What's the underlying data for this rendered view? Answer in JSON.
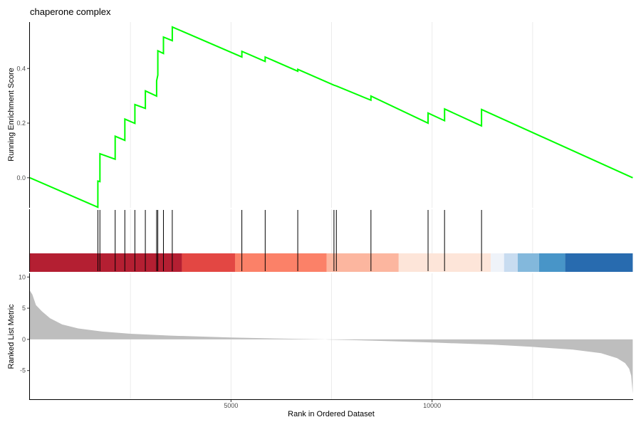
{
  "chart_data": {
    "type": "line",
    "title": "chaperone complex",
    "xlabel": "Rank in Ordered Dataset",
    "x_range": [
      0,
      15000
    ],
    "x_ticks": [
      5000,
      10000
    ],
    "grid": "vertical",
    "panels": {
      "enrichment": {
        "ylabel": "Running Enrichment Score",
        "ylim": [
          -0.11,
          0.57
        ],
        "y_ticks": [
          0.0,
          0.2,
          0.4
        ],
        "line_color": "#00ff00",
        "series": [
          {
            "x": [
              0,
              1690,
              1690,
              1740,
              1740,
              2120,
              2120,
              2360,
              2360,
              2610,
              2610,
              2870,
              2870,
              3150,
              3150,
              3180,
              3180,
              3320,
              3320,
              3540,
              3540,
              5270,
              5270,
              5850,
              5850,
              6660,
              6660,
              7560,
              7560,
              7620,
              7620,
              8480,
              8480,
              9900,
              9900,
              10310,
              10310,
              11230,
              11230,
              14990
            ],
            "y": [
              0.0,
              -0.108,
              -0.012,
              -0.014,
              0.088,
              0.068,
              0.152,
              0.137,
              0.215,
              0.199,
              0.268,
              0.254,
              0.318,
              0.299,
              0.355,
              0.376,
              0.465,
              0.455,
              0.515,
              0.502,
              0.552,
              0.442,
              0.463,
              0.426,
              0.442,
              0.39,
              0.397,
              0.339,
              0.339,
              0.336,
              0.336,
              0.284,
              0.299,
              0.2,
              0.237,
              0.209,
              0.252,
              0.19,
              0.25,
              0.0
            ]
          }
        ]
      },
      "hits": {
        "gene_ranks": [
          1690,
          1740,
          2120,
          2360,
          2610,
          2870,
          3150,
          3180,
          3320,
          3540,
          5270,
          5850,
          6660,
          7560,
          7620,
          8480,
          9900,
          10310,
          11230
        ]
      },
      "heat_band": {
        "segments": [
          {
            "start": 0,
            "end": 3780,
            "color": "#b2182b"
          },
          {
            "start": 3780,
            "end": 5100,
            "color": "#e2413d"
          },
          {
            "start": 5100,
            "end": 7380,
            "color": "#fb7d63"
          },
          {
            "start": 7380,
            "end": 9170,
            "color": "#fcb49c"
          },
          {
            "start": 9170,
            "end": 11460,
            "color": "#fde4d8"
          },
          {
            "start": 11460,
            "end": 11790,
            "color": "#eef3f9"
          },
          {
            "start": 11790,
            "end": 12130,
            "color": "#c6dbef"
          },
          {
            "start": 12130,
            "end": 12660,
            "color": "#7fb6db"
          },
          {
            "start": 12660,
            "end": 13310,
            "color": "#4292c6"
          },
          {
            "start": 13310,
            "end": 14990,
            "color": "#2166ac"
          }
        ]
      },
      "ranked": {
        "ylabel": "Ranked List Metric",
        "ylim": [
          -9.6,
          10.6
        ],
        "y_ticks": [
          10,
          5,
          0,
          -5
        ],
        "fill_color": "#bebebe",
        "x": [
          0,
          60,
          150,
          300,
          500,
          800,
          1200,
          1800,
          2500,
          3500,
          5000,
          6500,
          7300,
          7400,
          8500,
          10000,
          11500,
          12500,
          13500,
          14200,
          14600,
          14800,
          14900,
          14950,
          14990
        ],
        "y": [
          7.8,
          7.2,
          5.5,
          4.5,
          3.4,
          2.4,
          1.75,
          1.25,
          0.9,
          0.6,
          0.3,
          0.1,
          0.02,
          -0.02,
          -0.2,
          -0.5,
          -0.85,
          -1.2,
          -1.65,
          -2.2,
          -3.0,
          -3.8,
          -4.7,
          -5.8,
          -8.7
        ]
      }
    }
  }
}
